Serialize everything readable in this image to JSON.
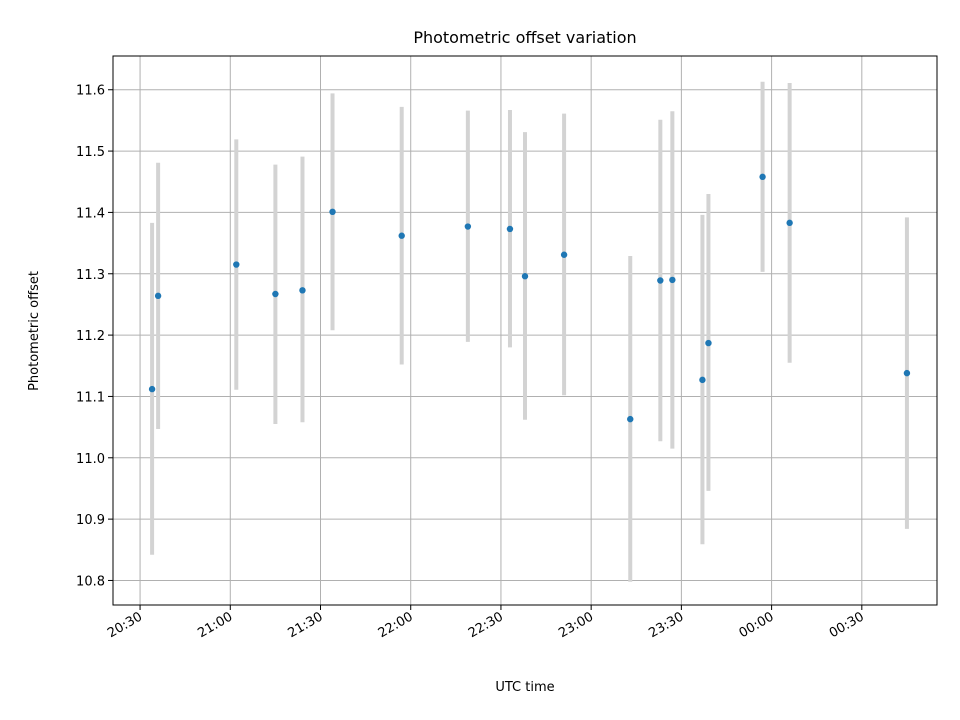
{
  "chart_data": {
    "type": "scatter",
    "title": "Photometric offset variation",
    "xlabel": "UTC time",
    "ylabel": "Photometric offset",
    "x_axis_type": "time",
    "x_range": [
      "20:21",
      "00:55"
    ],
    "ylim": [
      10.76,
      11.655
    ],
    "grid": true,
    "x_ticks": [
      "20:30",
      "21:00",
      "21:30",
      "22:00",
      "22:30",
      "23:00",
      "23:30",
      "00:00",
      "00:30"
    ],
    "y_ticks": [
      10.8,
      10.9,
      11.0,
      11.1,
      11.2,
      11.3,
      11.4,
      11.5,
      11.6
    ],
    "colors": {
      "marker": "#1f77b4",
      "errorbar": "#d3d3d3"
    },
    "points": [
      {
        "t": "20:34",
        "y": 11.112,
        "lo": 10.842,
        "hi": 11.383
      },
      {
        "t": "20:36",
        "y": 11.264,
        "lo": 11.047,
        "hi": 11.481
      },
      {
        "t": "21:02",
        "y": 11.315,
        "lo": 11.111,
        "hi": 11.519
      },
      {
        "t": "21:15",
        "y": 11.267,
        "lo": 11.055,
        "hi": 11.478
      },
      {
        "t": "21:24",
        "y": 11.273,
        "lo": 11.058,
        "hi": 11.491
      },
      {
        "t": "21:34",
        "y": 11.401,
        "lo": 11.208,
        "hi": 11.594
      },
      {
        "t": "21:57",
        "y": 11.362,
        "lo": 11.152,
        "hi": 11.572
      },
      {
        "t": "22:19",
        "y": 11.377,
        "lo": 11.189,
        "hi": 11.566
      },
      {
        "t": "22:33",
        "y": 11.373,
        "lo": 11.18,
        "hi": 11.567
      },
      {
        "t": "22:38",
        "y": 11.296,
        "lo": 11.062,
        "hi": 11.531
      },
      {
        "t": "22:51",
        "y": 11.331,
        "lo": 11.102,
        "hi": 11.561
      },
      {
        "t": "23:13",
        "y": 11.063,
        "lo": 10.798,
        "hi": 11.329
      },
      {
        "t": "23:23",
        "y": 11.289,
        "lo": 11.027,
        "hi": 11.551
      },
      {
        "t": "23:27",
        "y": 11.29,
        "lo": 11.015,
        "hi": 11.565
      },
      {
        "t": "23:37",
        "y": 11.127,
        "lo": 10.859,
        "hi": 11.396
      },
      {
        "t": "23:39",
        "y": 11.187,
        "lo": 10.946,
        "hi": 11.43
      },
      {
        "t": "23:57",
        "y": 11.458,
        "lo": 11.303,
        "hi": 11.613
      },
      {
        "t": "00:06",
        "y": 11.383,
        "lo": 11.155,
        "hi": 11.611
      },
      {
        "t": "00:45",
        "y": 11.138,
        "lo": 10.884,
        "hi": 11.392
      }
    ]
  }
}
